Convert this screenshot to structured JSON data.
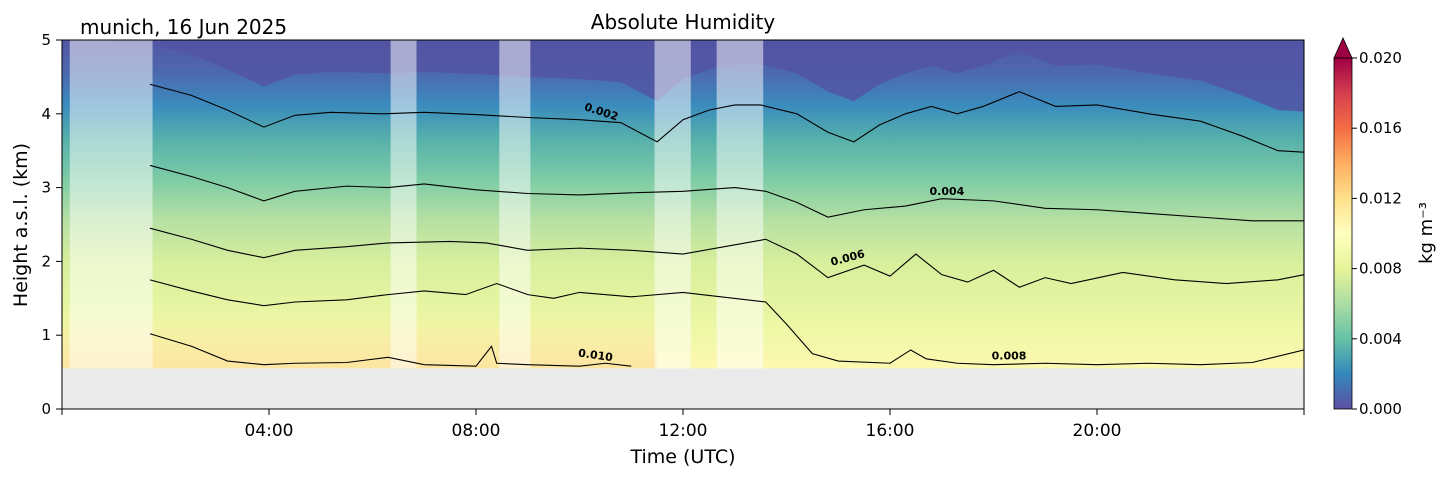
{
  "chart_data": {
    "type": "heatmap",
    "title": "Absolute Humidity",
    "location_date": "munich, 16 Jun 2025",
    "xlabel": "Time (UTC)",
    "ylabel": "Height a.s.l. (km)",
    "xlim_hours": [
      0,
      24
    ],
    "ylim_km": [
      0,
      5
    ],
    "x_ticks": [
      {
        "hour": 4,
        "label": "04:00"
      },
      {
        "hour": 8,
        "label": "08:00"
      },
      {
        "hour": 12,
        "label": "12:00"
      },
      {
        "hour": 16,
        "label": "16:00"
      },
      {
        "hour": 20,
        "label": "20:00"
      }
    ],
    "y_ticks": [
      "0",
      "1",
      "2",
      "3",
      "4",
      "5"
    ],
    "colorbar": {
      "label": "kg m⁻³",
      "range": [
        0.0,
        0.02
      ],
      "extend": "max",
      "ticks": [
        "0.000",
        "0.004",
        "0.008",
        "0.012",
        "0.016",
        "0.020"
      ],
      "colormap": [
        "#5e4fa2",
        "#3288bd",
        "#66c2a5",
        "#abdda4",
        "#e6f598",
        "#ffffbf",
        "#fee08b",
        "#fdae61",
        "#f46d43",
        "#d53e4f",
        "#9e0142"
      ]
    },
    "ground_level_km": 0.55,
    "ground_color": "#ebebeb",
    "masked_periods_hours": [
      [
        0.15,
        1.75
      ],
      [
        6.35,
        6.85
      ],
      [
        8.45,
        9.05
      ],
      [
        11.45,
        12.15
      ],
      [
        12.65,
        13.55
      ]
    ],
    "contour_labels": [
      {
        "text": "0.002",
        "hour": 10.4,
        "height_km": 3.98,
        "angle": 18
      },
      {
        "text": "0.004",
        "hour": 17.1,
        "height_km": 2.9,
        "angle": 0
      },
      {
        "text": "0.006",
        "hour": 15.2,
        "height_km": 2.0,
        "angle": -15
      },
      {
        "text": "0.010",
        "hour": 10.3,
        "height_km": 0.68,
        "angle": 8
      },
      {
        "text": "0.008",
        "hour": 18.3,
        "height_km": 0.67,
        "angle": 0
      }
    ],
    "contours": [
      {
        "level": 0.002,
        "points": [
          [
            1.7,
            4.4
          ],
          [
            2.5,
            4.25
          ],
          [
            3.2,
            4.05
          ],
          [
            3.9,
            3.82
          ],
          [
            4.5,
            3.98
          ],
          [
            5.2,
            4.02
          ],
          [
            6.2,
            4.0
          ],
          [
            7.0,
            4.02
          ],
          [
            8.0,
            3.99
          ],
          [
            9.0,
            3.95
          ],
          [
            10.0,
            3.92
          ],
          [
            10.8,
            3.88
          ],
          [
            11.5,
            3.62
          ],
          [
            12.0,
            3.92
          ],
          [
            12.5,
            4.05
          ],
          [
            13.0,
            4.12
          ],
          [
            13.5,
            4.12
          ],
          [
            14.2,
            4.0
          ],
          [
            14.8,
            3.75
          ],
          [
            15.3,
            3.62
          ],
          [
            15.8,
            3.85
          ],
          [
            16.3,
            4.0
          ],
          [
            16.8,
            4.1
          ],
          [
            17.3,
            4.0
          ],
          [
            17.8,
            4.1
          ],
          [
            18.5,
            4.3
          ],
          [
            19.2,
            4.1
          ],
          [
            20.0,
            4.12
          ],
          [
            21.0,
            4.0
          ],
          [
            22.0,
            3.9
          ],
          [
            22.8,
            3.7
          ],
          [
            23.5,
            3.5
          ],
          [
            24.0,
            3.48
          ]
        ]
      },
      {
        "level": 0.004,
        "points": [
          [
            1.7,
            3.3
          ],
          [
            2.5,
            3.15
          ],
          [
            3.2,
            3.0
          ],
          [
            3.9,
            2.82
          ],
          [
            4.5,
            2.95
          ],
          [
            5.5,
            3.02
          ],
          [
            6.3,
            3.0
          ],
          [
            7.0,
            3.05
          ],
          [
            8.0,
            2.97
          ],
          [
            9.0,
            2.92
          ],
          [
            10.0,
            2.9
          ],
          [
            11.0,
            2.93
          ],
          [
            12.0,
            2.95
          ],
          [
            13.0,
            3.0
          ],
          [
            13.6,
            2.95
          ],
          [
            14.2,
            2.8
          ],
          [
            14.8,
            2.6
          ],
          [
            15.5,
            2.7
          ],
          [
            16.3,
            2.75
          ],
          [
            17.0,
            2.85
          ],
          [
            18.0,
            2.82
          ],
          [
            19.0,
            2.72
          ],
          [
            20.0,
            2.7
          ],
          [
            21.0,
            2.65
          ],
          [
            22.0,
            2.6
          ],
          [
            23.0,
            2.55
          ],
          [
            24.0,
            2.55
          ]
        ]
      },
      {
        "level": 0.006,
        "points": [
          [
            1.7,
            2.45
          ],
          [
            2.5,
            2.3
          ],
          [
            3.2,
            2.15
          ],
          [
            3.9,
            2.05
          ],
          [
            4.5,
            2.15
          ],
          [
            5.5,
            2.2
          ],
          [
            6.3,
            2.25
          ],
          [
            7.5,
            2.27
          ],
          [
            8.2,
            2.25
          ],
          [
            9.0,
            2.15
          ],
          [
            10.0,
            2.18
          ],
          [
            11.0,
            2.15
          ],
          [
            12.0,
            2.1
          ],
          [
            13.6,
            2.3
          ],
          [
            14.2,
            2.1
          ],
          [
            14.8,
            1.78
          ],
          [
            15.5,
            1.95
          ],
          [
            16.0,
            1.8
          ],
          [
            16.5,
            2.1
          ],
          [
            17.0,
            1.82
          ],
          [
            17.5,
            1.72
          ],
          [
            18.0,
            1.88
          ],
          [
            18.5,
            1.65
          ],
          [
            19.0,
            1.78
          ],
          [
            19.5,
            1.7
          ],
          [
            20.5,
            1.85
          ],
          [
            21.5,
            1.75
          ],
          [
            22.5,
            1.7
          ],
          [
            23.5,
            1.75
          ],
          [
            24.0,
            1.82
          ]
        ]
      },
      {
        "level": 0.008,
        "points": [
          [
            1.7,
            1.75
          ],
          [
            2.5,
            1.6
          ],
          [
            3.2,
            1.48
          ],
          [
            3.9,
            1.4
          ],
          [
            4.5,
            1.45
          ],
          [
            5.5,
            1.48
          ],
          [
            6.3,
            1.55
          ],
          [
            7.0,
            1.6
          ],
          [
            7.8,
            1.55
          ],
          [
            8.4,
            1.7
          ],
          [
            9.0,
            1.55
          ],
          [
            9.5,
            1.5
          ],
          [
            10.0,
            1.58
          ],
          [
            11.0,
            1.52
          ],
          [
            12.0,
            1.58
          ],
          [
            13.6,
            1.45
          ],
          [
            14.0,
            1.15
          ],
          [
            14.5,
            0.75
          ],
          [
            15.0,
            0.65
          ],
          [
            16.0,
            0.62
          ],
          [
            16.4,
            0.8
          ],
          [
            16.7,
            0.68
          ],
          [
            17.3,
            0.62
          ],
          [
            18.0,
            0.6
          ],
          [
            19.0,
            0.62
          ],
          [
            20.0,
            0.6
          ],
          [
            21.0,
            0.62
          ],
          [
            22.0,
            0.6
          ],
          [
            23.0,
            0.63
          ],
          [
            24.0,
            0.8
          ]
        ]
      },
      {
        "level": 0.01,
        "points": [
          [
            1.7,
            1.02
          ],
          [
            2.5,
            0.85
          ],
          [
            3.2,
            0.65
          ],
          [
            3.9,
            0.6
          ],
          [
            4.5,
            0.62
          ],
          [
            5.5,
            0.63
          ],
          [
            6.3,
            0.7
          ],
          [
            7.0,
            0.6
          ],
          [
            8.0,
            0.58
          ],
          [
            8.3,
            0.85
          ],
          [
            8.4,
            0.62
          ],
          [
            9.0,
            0.6
          ],
          [
            10.0,
            0.58
          ],
          [
            10.5,
            0.62
          ],
          [
            11.0,
            0.58
          ]
        ]
      }
    ]
  }
}
